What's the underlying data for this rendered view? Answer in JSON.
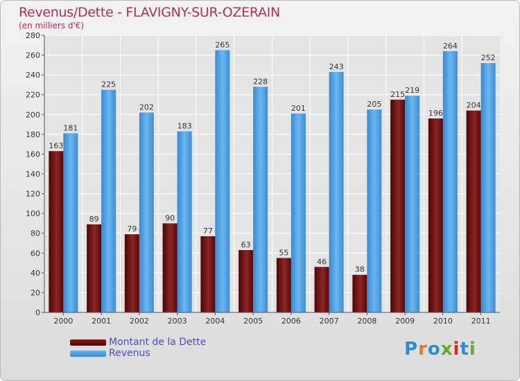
{
  "header": {
    "title": "Revenus/Dette - FLAVIGNY-SUR-OZERAIN",
    "subtitle": "(en milliers d'€)"
  },
  "legend": {
    "items": [
      {
        "label": "Montant de la Dette",
        "color": "#6b0a0a"
      },
      {
        "label": "Revenus",
        "color": "#4a9be0"
      }
    ]
  },
  "logo": {
    "text": "Proxiti",
    "colors": [
      "#2a8fd0",
      "#e07a1a",
      "#2a8fd0",
      "#6aa82a",
      "#d02a2a",
      "#2a8fd0",
      "#6aa82a"
    ]
  },
  "chart_data": {
    "type": "bar",
    "title": "Revenus/Dette - FLAVIGNY-SUR-OZERAIN",
    "ylabel": "(en milliers d'€)",
    "categories": [
      "2000",
      "2001",
      "2002",
      "2003",
      "2004",
      "2005",
      "2006",
      "2007",
      "2008",
      "2009",
      "2010",
      "2011"
    ],
    "series": [
      {
        "name": "Montant de la Dette",
        "color": "#6b0a0a",
        "values": [
          163,
          89,
          79,
          90,
          77,
          63,
          55,
          46,
          38,
          215,
          196,
          204
        ]
      },
      {
        "name": "Revenus",
        "color": "#4a9be0",
        "values": [
          181,
          225,
          202,
          183,
          265,
          228,
          201,
          243,
          205,
          219,
          264,
          252
        ]
      }
    ],
    "ylim": [
      0,
      280
    ],
    "yticks": [
      0,
      20,
      40,
      60,
      80,
      100,
      120,
      140,
      160,
      180,
      200,
      220,
      240,
      260,
      280
    ],
    "grid": true,
    "legend_position": "bottom-left"
  }
}
